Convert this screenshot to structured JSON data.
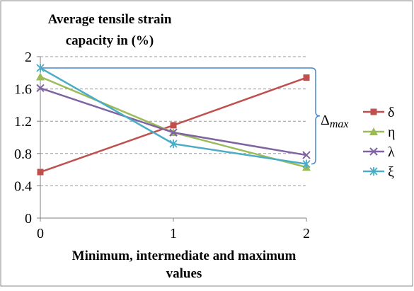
{
  "chart_data": {
    "type": "line",
    "title_lines": [
      "Average tensile strain",
      "capacity in (%)"
    ],
    "xlabel_lines": [
      "Minimum, intermediate and maximum",
      "values"
    ],
    "ylabel": "",
    "x": [
      0,
      1,
      2
    ],
    "x_ticks": [
      "0",
      "1",
      "2"
    ],
    "y_ticks": [
      "0",
      "0.4",
      "0.8",
      "1.2",
      "1.6",
      "2"
    ],
    "xlim": [
      0,
      2
    ],
    "ylim": [
      0,
      2
    ],
    "grid": "horizontal-dashed",
    "legend_position": "right",
    "series": [
      {
        "name": "δ",
        "values": [
          0.57,
          1.15,
          1.74
        ],
        "color": "#c0504d",
        "marker": "square"
      },
      {
        "name": "η",
        "values": [
          1.75,
          1.06,
          0.63
        ],
        "color": "#9bbb59",
        "marker": "triangle"
      },
      {
        "name": "λ",
        "values": [
          1.61,
          1.06,
          0.78
        ],
        "color": "#8064a2",
        "marker": "x"
      },
      {
        "name": "ξ",
        "values": [
          1.86,
          0.92,
          0.67
        ],
        "color": "#4bacc6",
        "marker": "star"
      }
    ],
    "annotation": {
      "base": "Δ",
      "subscript": "max",
      "color": "#4a86c8",
      "from_value": 1.86,
      "to_value": 0.67
    }
  }
}
